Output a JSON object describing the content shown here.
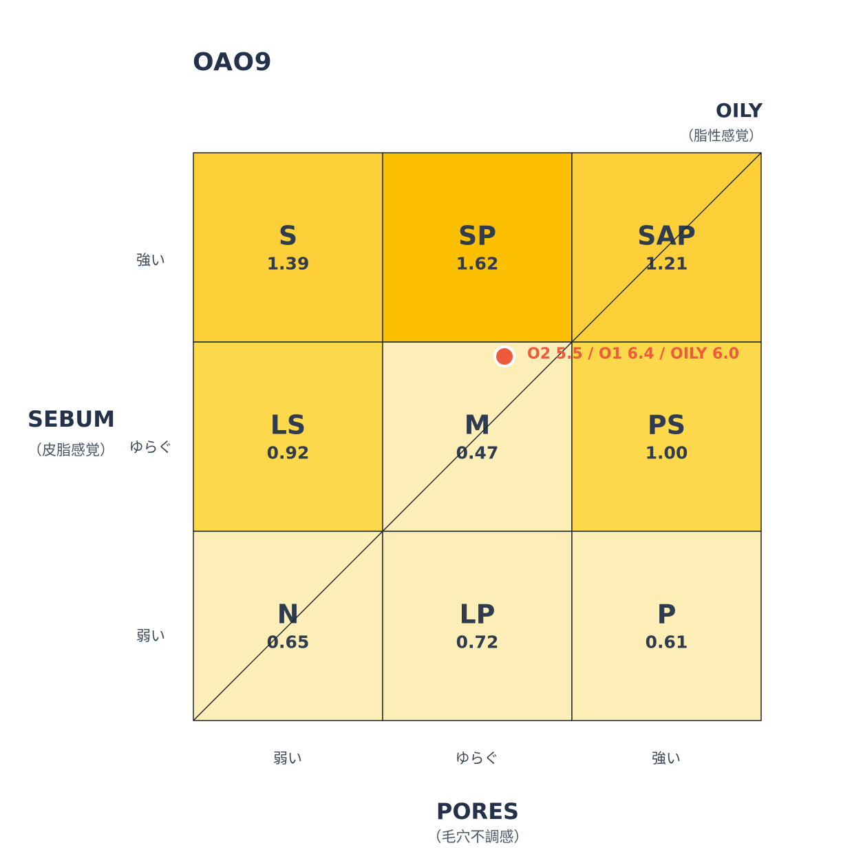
{
  "title": "OAO9",
  "oily_axis": {
    "label": "OILY",
    "sub": "（脂性感覚）"
  },
  "y_axis": {
    "label": "SEBUM",
    "sub": "（皮脂感覚）",
    "ticks": [
      "強い",
      "ゆらぐ",
      "弱い"
    ]
  },
  "x_axis": {
    "label": "PORES",
    "sub": "（毛穴不調感）",
    "ticks": [
      "弱い",
      "ゆらぐ",
      "強い"
    ]
  },
  "point": {
    "label": "O2 5.5 / O1 6.4 / OILY 6.0"
  },
  "chart_data": {
    "type": "heatmap",
    "title": "OAO9",
    "xlabel": "PORES（毛穴不調感）",
    "ylabel": "SEBUM（皮脂感覚）",
    "x_categories": [
      "弱い",
      "ゆらぐ",
      "強い"
    ],
    "y_categories": [
      "強い",
      "ゆらぐ",
      "弱い"
    ],
    "cells": [
      [
        {
          "code": "S",
          "value": 1.39
        },
        {
          "code": "SP",
          "value": 1.62
        },
        {
          "code": "SAP",
          "value": 1.21
        }
      ],
      [
        {
          "code": "LS",
          "value": 0.92
        },
        {
          "code": "M",
          "value": 0.47
        },
        {
          "code": "PS",
          "value": 1.0
        }
      ],
      [
        {
          "code": "N",
          "value": 0.65
        },
        {
          "code": "LP",
          "value": 0.72
        },
        {
          "code": "P",
          "value": 0.61
        }
      ]
    ],
    "diagonal": "OILY",
    "point": {
      "O2": 5.5,
      "O1": 6.4,
      "OILY": 6.0
    },
    "colors": {
      "high": "#fdc000",
      "mid": "#fdd84a",
      "low": "#fdeeb7",
      "point": "#ee5a3c"
    }
  }
}
